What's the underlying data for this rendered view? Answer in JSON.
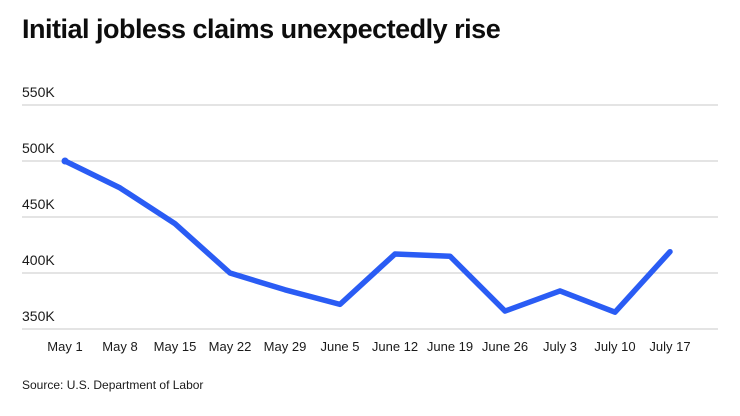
{
  "title": "Initial jobless claims unexpectedly rise",
  "source": "Source: U.S. Department of Labor",
  "colors": {
    "line": "#2a5cf4",
    "grid": "#c9c9c9",
    "tick_text": "#1a1a1a",
    "title_text": "#0d0d0d",
    "background": "#ffffff"
  },
  "chart_data": {
    "type": "line",
    "title": "Initial jobless claims unexpectedly rise",
    "categories": [
      "May 1",
      "May 8",
      "May 15",
      "May 22",
      "May 29",
      "June 5",
      "June 12",
      "June 19",
      "June 26",
      "July 3",
      "July 10",
      "July 17"
    ],
    "series": [
      {
        "name": "Initial jobless claims",
        "values": [
          500,
          476,
          444,
          400,
          385,
          372,
          417,
          415,
          366,
          384,
          365,
          419
        ]
      }
    ],
    "value_unit": "K",
    "xlabel": "",
    "ylabel": "",
    "ylim": [
      350,
      550
    ],
    "yticks": [
      350,
      400,
      450,
      500,
      550
    ],
    "ytick_labels": [
      "350K",
      "400K",
      "450K",
      "500K",
      "550K"
    ],
    "grid": "horizontal",
    "legend": "none"
  }
}
